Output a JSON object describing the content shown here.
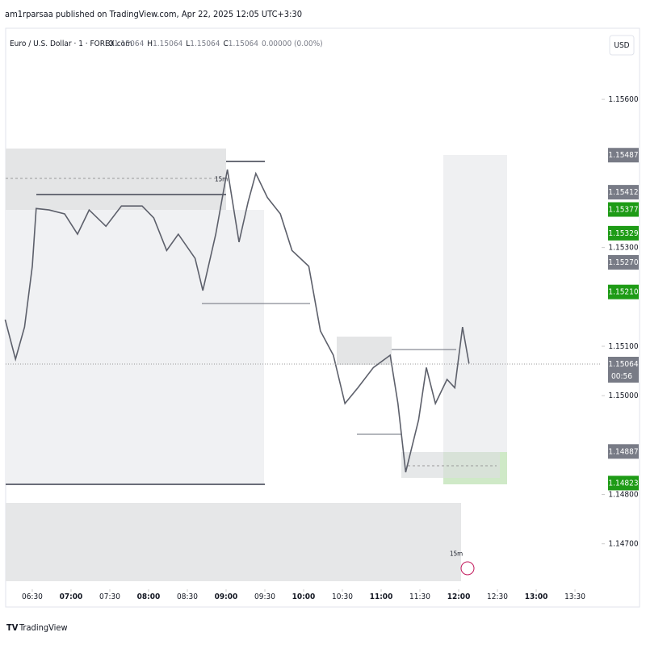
{
  "header": "am1rparsaa published on TradingView.com, Apr 22, 2025 12:05 UTC+3:30",
  "footer": "TradingView",
  "chart_data": {
    "type": "line",
    "symbol": "Euro / U.S. Dollar · 1 · FOREX.com",
    "ohlc": [
      {
        "key": "O",
        "value": "1.15064"
      },
      {
        "key": "H",
        "value": "1.15064"
      },
      {
        "key": "L",
        "value": "1.15064"
      },
      {
        "key": "C",
        "value": "1.15064"
      }
    ],
    "change": "0.00000 (0.00%)",
    "currency": "USD",
    "timeframe_labels": [
      "15m",
      "15m"
    ],
    "countdown": "00:56",
    "x": [
      369,
      377,
      384,
      390,
      393,
      403,
      415,
      425,
      434,
      447,
      459,
      475,
      484,
      494,
      503,
      516,
      522,
      532,
      541,
      550,
      557,
      563,
      572,
      582,
      591,
      604,
      613,
      623,
      632,
      642,
      654,
      667,
      673,
      679,
      689,
      695,
      702,
      711,
      717,
      723,
      728
    ],
    "series": [
      {
        "name": "EURUSD",
        "color": "#5d606b",
        "values": [
          1.15154,
          1.15074,
          1.15139,
          1.15262,
          1.15379,
          1.15376,
          1.15368,
          1.15327,
          1.15376,
          1.15343,
          1.15384,
          1.15384,
          1.1536,
          1.15294,
          1.15327,
          1.15278,
          1.15213,
          1.15327,
          1.15458,
          1.15311,
          1.15392,
          1.1545,
          1.15401,
          1.15368,
          1.15294,
          1.15262,
          1.15131,
          1.15082,
          1.14984,
          1.15016,
          1.15057,
          1.15082,
          1.14984,
          1.14845,
          1.14951,
          1.15057,
          1.14984,
          1.15033,
          1.15016,
          1.15139,
          1.15065
        ]
      }
    ],
    "xlim": [
      369.4,
      830.6
    ],
    "xticks": [
      {
        "value": 390,
        "label": "06:30"
      },
      {
        "value": 420,
        "label": "07:00"
      },
      {
        "value": 450,
        "label": "07:30"
      },
      {
        "value": 480,
        "label": "08:00"
      },
      {
        "value": 510,
        "label": "08:30"
      },
      {
        "value": 540,
        "label": "09:00"
      },
      {
        "value": 570,
        "label": "09:30"
      },
      {
        "value": 600,
        "label": "10:00"
      },
      {
        "value": 630,
        "label": "10:30"
      },
      {
        "value": 660,
        "label": "11:00"
      },
      {
        "value": 690,
        "label": "11:30"
      },
      {
        "value": 720,
        "label": "12:00"
      },
      {
        "value": 750,
        "label": "12:30"
      },
      {
        "value": 780,
        "label": "13:00"
      },
      {
        "value": 810,
        "label": "13:30"
      }
    ],
    "ylim": [
      1.14572,
      1.15744
    ],
    "yticks": [
      {
        "value": 1.156,
        "label": "1.15600"
      },
      {
        "value": 1.153,
        "label": "1.15300"
      },
      {
        "value": 1.151,
        "label": "1.15100"
      },
      {
        "value": 1.15,
        "label": "1.15000"
      },
      {
        "value": 1.148,
        "label": "1.14800"
      },
      {
        "value": 1.147,
        "label": "1.14700"
      }
    ],
    "price_labels": [
      {
        "value": 1.15487,
        "label": "1.15487",
        "color": "#787b86"
      },
      {
        "value": 1.15412,
        "label": "1.15412",
        "color": "#787b86"
      },
      {
        "value": 1.15377,
        "label": "1.15377",
        "color": "#1e9b16"
      },
      {
        "value": 1.15329,
        "label": "1.15329",
        "color": "#1e9b16"
      },
      {
        "value": 1.1527,
        "label": "1.15270",
        "color": "#787b86"
      },
      {
        "value": 1.1521,
        "label": "1.15210",
        "color": "#1e9b16"
      },
      {
        "value": 1.15064,
        "label": "1.15064",
        "color": "#787b86"
      },
      {
        "value": 1.14887,
        "label": "1.14887",
        "color": "#787b86"
      },
      {
        "value": 1.14823,
        "label": "1.14823",
        "color": "#1e9b16"
      }
    ]
  }
}
